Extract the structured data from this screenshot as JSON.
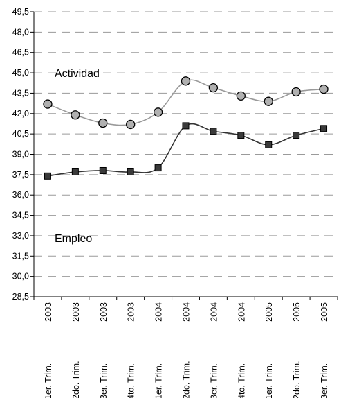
{
  "chart_data": {
    "type": "line",
    "categories": [
      [
        "1er. Trim.",
        "2003"
      ],
      [
        "2do. Trim.",
        "2003"
      ],
      [
        "3er. Trim.",
        "2003"
      ],
      [
        "4to. Trim.",
        "2003"
      ],
      [
        "1er. Trim.",
        "2004"
      ],
      [
        "2do. Trim.",
        "2004"
      ],
      [
        "3er. Trim.",
        "2004"
      ],
      [
        "4to. Trim.",
        "2004"
      ],
      [
        "1er. Trim.",
        "2005"
      ],
      [
        "2do. Trim.",
        "2005"
      ],
      [
        "3er. Trim.",
        "2005"
      ]
    ],
    "series": [
      {
        "name": "Actividad",
        "marker": "circle",
        "color": "#999999",
        "values": [
          42.7,
          41.9,
          41.3,
          41.2,
          42.1,
          44.4,
          43.9,
          43.3,
          42.9,
          43.6,
          43.8
        ]
      },
      {
        "name": "Empleo",
        "marker": "square",
        "color": "#333333",
        "values": [
          37.4,
          37.7,
          37.8,
          37.7,
          38.0,
          41.1,
          40.7,
          40.4,
          39.7,
          40.4,
          40.9
        ]
      }
    ],
    "ylim": [
      28.5,
      49.5
    ],
    "yticks": [
      "28,5",
      "30,0",
      "31,5",
      "33,0",
      "34,5",
      "36,0",
      "37,5",
      "39,0",
      "40,5",
      "42,0",
      "43,5",
      "45,0",
      "46,5",
      "48,0",
      "49,5"
    ],
    "grid": true,
    "grid_style": "dashed"
  }
}
